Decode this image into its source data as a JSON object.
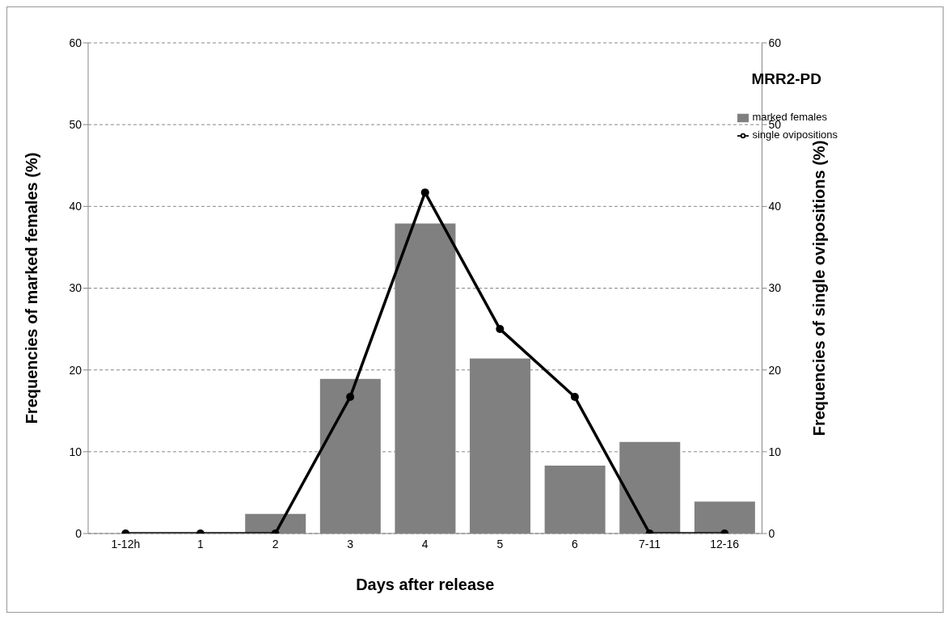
{
  "chart_data": {
    "type": "bar",
    "title": "MRR2-PD",
    "xlabel": "Days after release",
    "ylabel": "Frequencies of marked females (%)",
    "y2label": "Frequencies of single ovipositions (%)",
    "categories": [
      "1-12h",
      "1",
      "2",
      "3",
      "4",
      "5",
      "6",
      "7-11",
      "12-16"
    ],
    "series": [
      {
        "name": "marked females",
        "color": "#808080",
        "values": [
          0,
          0,
          2.4,
          18.9,
          37.9,
          21.4,
          8.3,
          11.2,
          3.9
        ]
      },
      {
        "name": "single ovipositions",
        "type": "line",
        "axis": "y2",
        "color": "#000000",
        "marker": "circle",
        "values": [
          0,
          0,
          0,
          16.7,
          41.7,
          25,
          16.7,
          0,
          0
        ]
      }
    ],
    "ylim": [
      0,
      60
    ],
    "yticks": [
      0,
      10,
      20,
      30,
      40,
      50,
      60
    ],
    "y2lim": [
      0,
      60
    ],
    "y2ticks": [
      0,
      10,
      20,
      30,
      40,
      50,
      60
    ],
    "grid": "y",
    "legend": "top right"
  }
}
